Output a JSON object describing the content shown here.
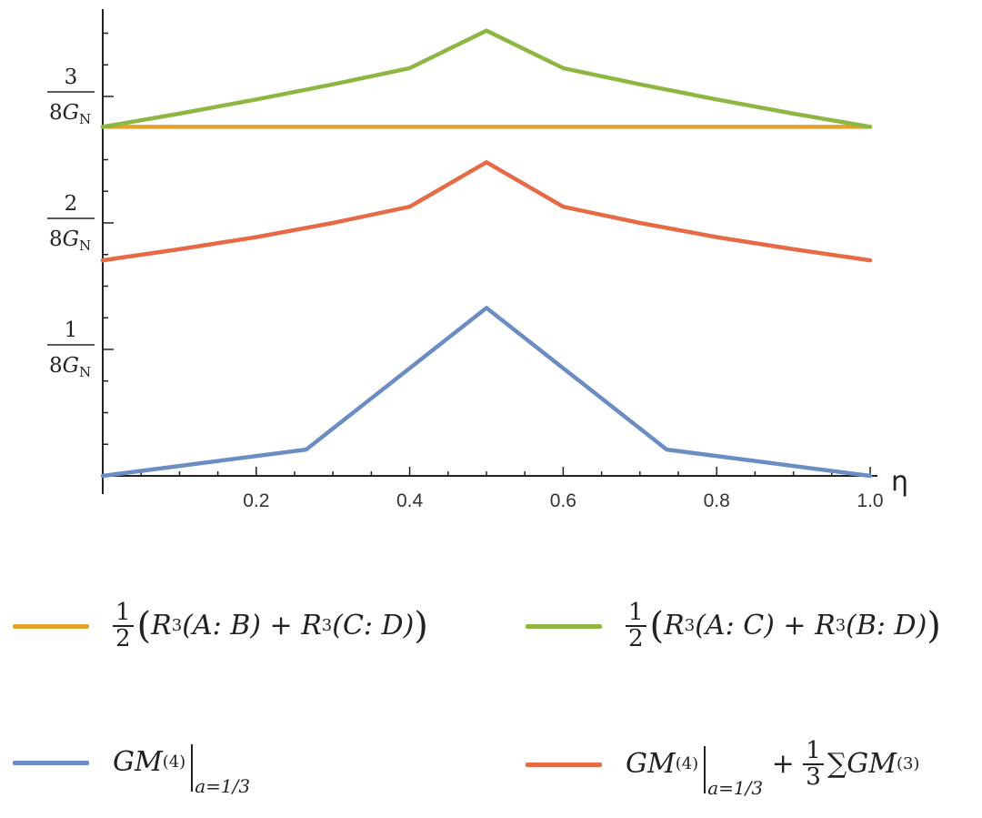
{
  "chart_data": {
    "type": "line",
    "xlabel": "η",
    "xlim": [
      0,
      1
    ],
    "ylim": [
      0,
      0.46
    ],
    "x_ticks": [
      "0.2",
      "0.4",
      "0.6",
      "0.8",
      "1.0"
    ],
    "y_ticks": [
      {
        "value": 0.125,
        "num": "1",
        "den_main": "8G",
        "den_sub": "N"
      },
      {
        "value": 0.25,
        "num": "2",
        "den_main": "8G",
        "den_sub": "N"
      },
      {
        "value": 0.375,
        "num": "3",
        "den_main": "8G",
        "den_sub": "N"
      }
    ],
    "series": [
      {
        "key": "ab_cd",
        "color": "#E3A32A",
        "x": [
          0,
          0.5,
          1.0
        ],
        "y": [
          0.345,
          0.345,
          0.345
        ]
      },
      {
        "key": "ac_bd",
        "color": "#8DB642",
        "x": [
          0,
          0.1,
          0.2,
          0.3,
          0.4,
          0.5,
          0.6,
          0.7,
          0.8,
          0.9,
          1.0
        ],
        "y": [
          0.345,
          0.358,
          0.372,
          0.387,
          0.403,
          0.44,
          0.403,
          0.387,
          0.372,
          0.358,
          0.345
        ]
      },
      {
        "key": "gm4",
        "color": "#6B8DC4",
        "x": [
          0,
          0.265,
          0.5,
          0.735,
          1.0
        ],
        "y": [
          0,
          0.026,
          0.166,
          0.026,
          0
        ]
      },
      {
        "key": "gm4_plus",
        "color": "#E56A45",
        "x": [
          0,
          0.1,
          0.2,
          0.3,
          0.4,
          0.5,
          0.6,
          0.7,
          0.8,
          0.9,
          1.0
        ],
        "y": [
          0.213,
          0.224,
          0.236,
          0.25,
          0.266,
          0.31,
          0.266,
          0.25,
          0.236,
          0.224,
          0.213
        ]
      }
    ]
  },
  "legend": {
    "ab_cd": {
      "frac_num": "1",
      "frac_den": "2",
      "open": "(",
      "r1": "R",
      "r1_sub": "3",
      "arg1": "(A: B)",
      "plus": " + ",
      "r2": "R",
      "r2_sub": "3",
      "arg2": "(C: D)",
      "close": ")"
    },
    "ac_bd": {
      "frac_num": "1",
      "frac_den": "2",
      "open": "(",
      "r1": "R",
      "r1_sub": "3",
      "arg1": "(A: C)",
      "plus": " + ",
      "r2": "R",
      "r2_sub": "3",
      "arg2": "(B: D)",
      "close": ")"
    },
    "gm4": {
      "gm": "GM",
      "sup": "(4)",
      "eval": "a=1/3"
    },
    "gm4_plus": {
      "gm": "GM",
      "sup": "(4)",
      "eval": "a=1/3",
      "plus": " + ",
      "frac_num": "1",
      "frac_den": "3",
      "sum": "∑",
      "gm2": "GM",
      "sup2": "(3)"
    }
  }
}
